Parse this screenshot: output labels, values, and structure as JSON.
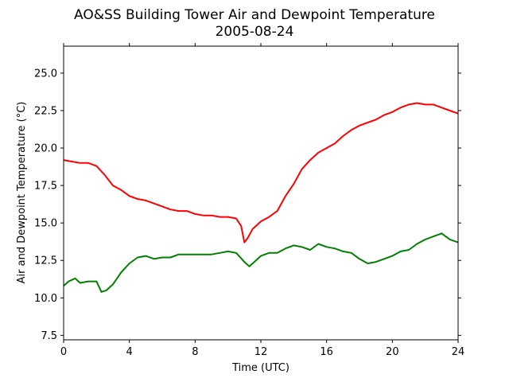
{
  "chart_data": {
    "type": "line",
    "title": "AO&SS Building Tower Air and Dewpoint Temperature",
    "subtitle": "2005-08-24",
    "xlabel": "Time (UTC)",
    "ylabel": "Air and Dewpoint Temperature (°C)",
    "xlim": [
      0,
      24
    ],
    "ylim": [
      7.2,
      26.8
    ],
    "xticks": [
      "0",
      "4",
      "8",
      "12",
      "16",
      "20",
      "24"
    ],
    "yticks": [
      "7.5",
      "10.0",
      "12.5",
      "15.0",
      "17.5",
      "20.0",
      "22.5",
      "25.0"
    ],
    "grid": false,
    "legend": "none",
    "series": [
      {
        "color": "#ff0000",
        "x": [
          0,
          0.5,
          1,
          1.5,
          2,
          2.5,
          3,
          3.5,
          4,
          4.5,
          5,
          5.5,
          6,
          6.5,
          7,
          7.5,
          8,
          8.5,
          9,
          9.5,
          10,
          10.5,
          10.8,
          11,
          11.2,
          11.5,
          12,
          12.5,
          13,
          13.5,
          14,
          14.5,
          15,
          15.5,
          16,
          16.5,
          17,
          17.5,
          18,
          18.5,
          19,
          19.5,
          20,
          20.5,
          21,
          21.5,
          22,
          22.5,
          23,
          23.5,
          24
        ],
        "y": [
          19.2,
          19.1,
          19.0,
          19.0,
          18.8,
          18.2,
          17.5,
          17.2,
          16.8,
          16.6,
          16.5,
          16.3,
          16.1,
          15.9,
          15.8,
          15.8,
          15.6,
          15.5,
          15.5,
          15.4,
          15.4,
          15.3,
          14.8,
          13.7,
          14.0,
          14.6,
          15.1,
          15.4,
          15.8,
          16.8,
          17.6,
          18.6,
          19.2,
          19.7,
          20.0,
          20.3,
          20.8,
          21.2,
          21.5,
          21.7,
          21.9,
          22.2,
          22.4,
          22.7,
          22.9,
          23.0,
          22.9,
          22.9,
          22.7,
          22.5,
          22.3
        ]
      },
      {
        "color": "#008000",
        "x": [
          0,
          0.3,
          0.7,
          1,
          1.5,
          2,
          2.3,
          2.6,
          3,
          3.5,
          4,
          4.5,
          5,
          5.5,
          6,
          6.5,
          7,
          7.5,
          8,
          8.5,
          9,
          9.5,
          10,
          10.5,
          11,
          11.3,
          11.7,
          12,
          12.5,
          13,
          13.5,
          14,
          14.5,
          15,
          15.5,
          16,
          16.5,
          17,
          17.5,
          18,
          18.5,
          19,
          19.5,
          20,
          20.5,
          21,
          21.5,
          22,
          22.5,
          23,
          23.5,
          24
        ],
        "y": [
          10.8,
          11.1,
          11.3,
          11.0,
          11.1,
          11.1,
          10.4,
          10.5,
          10.9,
          11.7,
          12.3,
          12.7,
          12.8,
          12.6,
          12.7,
          12.7,
          12.9,
          12.9,
          12.9,
          12.9,
          12.9,
          13.0,
          13.1,
          13.0,
          12.4,
          12.1,
          12.5,
          12.8,
          13.0,
          13.0,
          13.3,
          13.5,
          13.4,
          13.2,
          13.6,
          13.4,
          13.3,
          13.1,
          13.0,
          12.6,
          12.3,
          12.4,
          12.6,
          12.8,
          13.1,
          13.2,
          13.6,
          13.9,
          14.1,
          14.3,
          13.9,
          13.7
        ]
      }
    ]
  }
}
